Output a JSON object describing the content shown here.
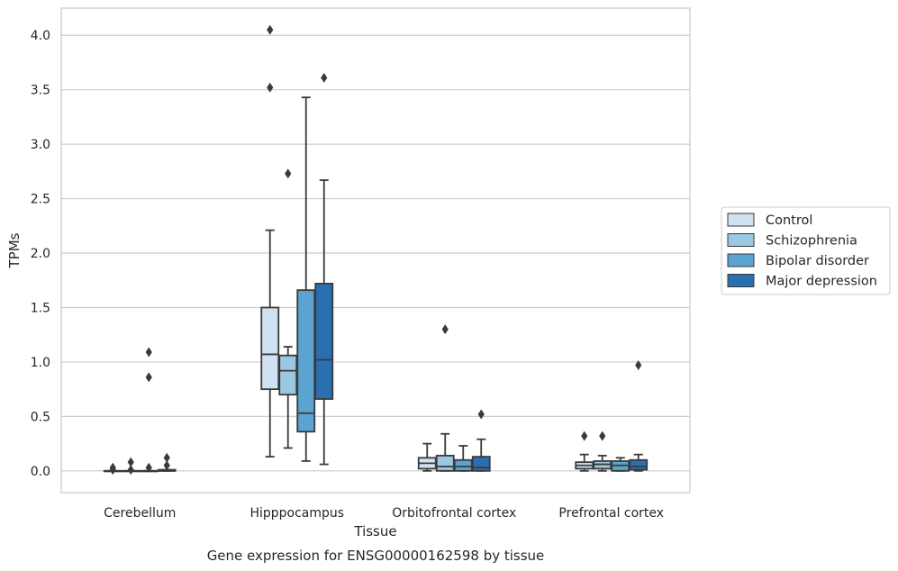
{
  "chart_data": {
    "type": "box",
    "xlabel": "Tissue",
    "ylabel": "TPMs",
    "caption": "Gene expression for ENSG00000162598 by tissue",
    "ylim": [
      -0.2,
      4.25
    ],
    "yticks": [
      "0.0",
      "0.5",
      "1.0",
      "1.5",
      "2.0",
      "2.5",
      "3.0",
      "3.5",
      "4.0"
    ],
    "grid": "horizontal",
    "legend_position": "right",
    "categories": [
      "Cerebellum",
      "Hipppocampus",
      "Orbitofrontal cortex",
      "Prefrontal cortex"
    ],
    "series": [
      {
        "name": "Control",
        "color": "#d0e1f1",
        "boxes": [
          {
            "q1": 0.0,
            "median": 0.0,
            "q3": 0.0,
            "whisker_low": 0.0,
            "whisker_high": 0.0,
            "outliers": [
              0.03,
              0.01
            ]
          },
          {
            "q1": 0.75,
            "median": 1.07,
            "q3": 1.5,
            "whisker_low": 0.13,
            "whisker_high": 2.21,
            "outliers": [
              4.05,
              3.52
            ]
          },
          {
            "q1": 0.02,
            "median": 0.07,
            "q3": 0.12,
            "whisker_low": 0.0,
            "whisker_high": 0.25,
            "outliers": []
          },
          {
            "q1": 0.02,
            "median": 0.05,
            "q3": 0.08,
            "whisker_low": 0.0,
            "whisker_high": 0.15,
            "outliers": [
              0.32
            ]
          }
        ]
      },
      {
        "name": "Schizophrenia",
        "color": "#9ac8e0",
        "boxes": [
          {
            "q1": 0.0,
            "median": 0.0,
            "q3": 0.0,
            "whisker_low": 0.0,
            "whisker_high": 0.0,
            "outliers": [
              0.08,
              0.01
            ]
          },
          {
            "q1": 0.7,
            "median": 0.92,
            "q3": 1.06,
            "whisker_low": 0.21,
            "whisker_high": 1.14,
            "outliers": [
              2.73
            ]
          },
          {
            "q1": 0.0,
            "median": 0.04,
            "q3": 0.14,
            "whisker_low": 0.0,
            "whisker_high": 0.34,
            "outliers": [
              1.3
            ]
          },
          {
            "q1": 0.02,
            "median": 0.06,
            "q3": 0.09,
            "whisker_low": 0.0,
            "whisker_high": 0.14,
            "outliers": [
              0.32
            ]
          }
        ]
      },
      {
        "name": "Bipolar disorder",
        "color": "#5ba3d0",
        "boxes": [
          {
            "q1": 0.0,
            "median": 0.0,
            "q3": 0.0,
            "whisker_low": 0.0,
            "whisker_high": 0.0,
            "outliers": [
              1.09,
              0.86,
              0.03
            ]
          },
          {
            "q1": 0.36,
            "median": 0.53,
            "q3": 1.66,
            "whisker_low": 0.09,
            "whisker_high": 3.43,
            "outliers": []
          },
          {
            "q1": 0.0,
            "median": 0.04,
            "q3": 0.1,
            "whisker_low": 0.0,
            "whisker_high": 0.23,
            "outliers": []
          },
          {
            "q1": 0.0,
            "median": 0.05,
            "q3": 0.09,
            "whisker_low": 0.0,
            "whisker_high": 0.12,
            "outliers": []
          }
        ]
      },
      {
        "name": "Major depression",
        "color": "#2a6fb0",
        "boxes": [
          {
            "q1": 0.0,
            "median": 0.0,
            "q3": 0.01,
            "whisker_low": 0.0,
            "whisker_high": 0.01,
            "outliers": [
              0.12,
              0.05
            ]
          },
          {
            "q1": 0.66,
            "median": 1.02,
            "q3": 1.72,
            "whisker_low": 0.06,
            "whisker_high": 2.67,
            "outliers": [
              3.61
            ]
          },
          {
            "q1": 0.0,
            "median": 0.03,
            "q3": 0.13,
            "whisker_low": 0.0,
            "whisker_high": 0.29,
            "outliers": [
              0.52
            ]
          },
          {
            "q1": 0.01,
            "median": 0.04,
            "q3": 0.1,
            "whisker_low": 0.0,
            "whisker_high": 0.15,
            "outliers": [
              0.97
            ]
          }
        ]
      }
    ]
  }
}
